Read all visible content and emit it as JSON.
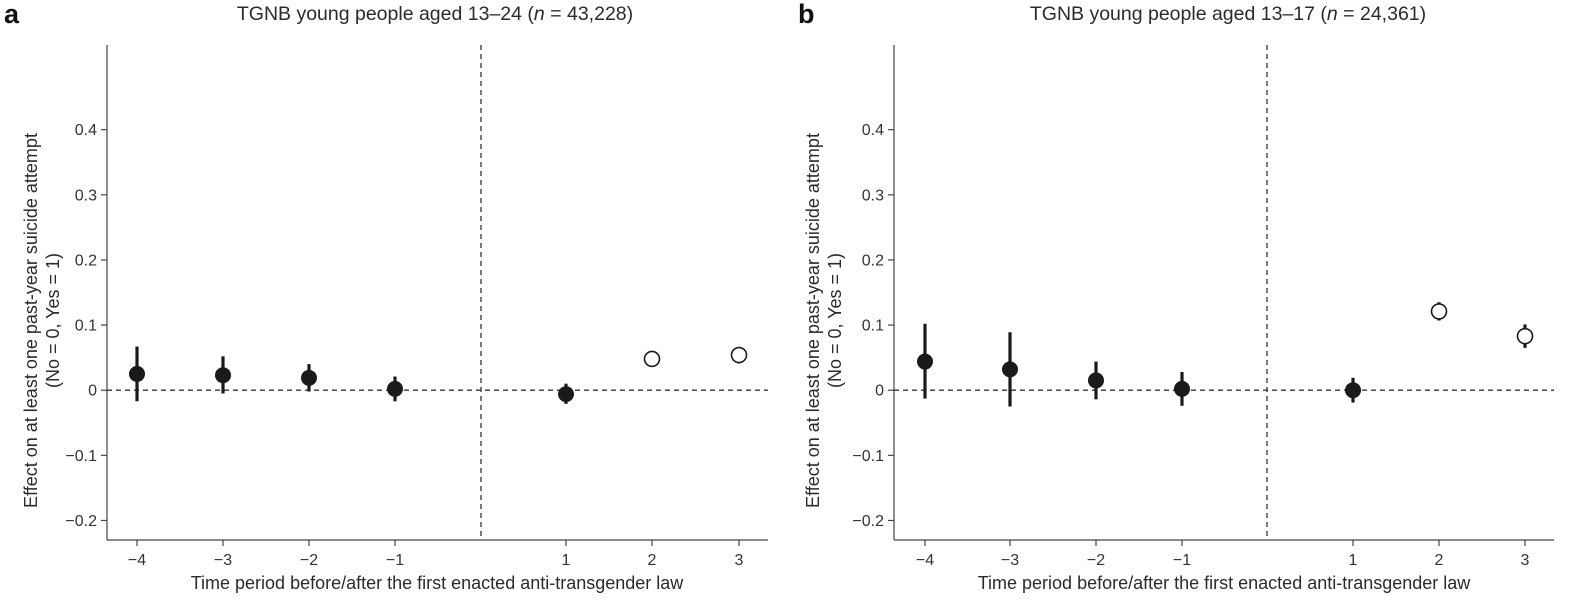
{
  "chart_data": [
    {
      "type": "scatter",
      "panel_letter": "a",
      "title_prefix": "TGNB young people aged 13–24 (",
      "title_n": "n",
      "title_suffix": " = 43,228)",
      "xlabel": "Time period before/after the first enacted anti-transgender law",
      "ylabel_line1": "Effect on at least one past-year suicide attempt",
      "ylabel_line2": "(No = 0, Yes = 1)",
      "ylim": [
        -0.23,
        0.53
      ],
      "yticks": [
        0.4,
        0.3,
        0.2,
        0.1,
        0,
        -0.1,
        -0.2
      ],
      "ytick_labels": [
        "0.4",
        "0.3",
        "0.2",
        "0.1",
        "0",
        "−0.1",
        "−0.2"
      ],
      "xticks": [
        -4,
        -3,
        -2,
        -1,
        1,
        2,
        3
      ],
      "xtick_labels": [
        "−4",
        "−3",
        "−2",
        "−1",
        "1",
        "2",
        "3"
      ],
      "reference_lines": {
        "y": 0,
        "x": "between -1 and 1"
      },
      "grid": false,
      "points": [
        {
          "x": -4,
          "y": 0.025,
          "ci": [
            -0.017,
            0.067
          ],
          "marker": "filled"
        },
        {
          "x": -3,
          "y": 0.023,
          "ci": [
            -0.005,
            0.052
          ],
          "marker": "filled"
        },
        {
          "x": -2,
          "y": 0.019,
          "ci": [
            -0.002,
            0.04
          ],
          "marker": "filled"
        },
        {
          "x": -1,
          "y": 0.002,
          "ci": [
            -0.017,
            0.021
          ],
          "marker": "filled"
        },
        {
          "x": 1,
          "y": -0.006,
          "ci": [
            -0.021,
            0.01
          ],
          "marker": "filled"
        },
        {
          "x": 2,
          "y": 0.048,
          "ci": [
            0.04,
            0.056
          ],
          "marker": "open"
        },
        {
          "x": 3,
          "y": 0.054,
          "ci": [
            0.041,
            0.066
          ],
          "marker": "open"
        }
      ]
    },
    {
      "type": "scatter",
      "panel_letter": "b",
      "title_prefix": "TGNB young people aged 13–17 (",
      "title_n": "n",
      "title_suffix": " = 24,361)",
      "xlabel": "Time period before/after the first enacted anti-transgender law",
      "ylabel_line1": "Effect on at least one past-year suicide attempt",
      "ylabel_line2": "(No = 0, Yes = 1)",
      "ylim": [
        -0.23,
        0.53
      ],
      "yticks": [
        0.4,
        0.3,
        0.2,
        0.1,
        0,
        -0.1,
        -0.2
      ],
      "ytick_labels": [
        "0.4",
        "0.3",
        "0.2",
        "0.1",
        "0",
        "−0.1",
        "−0.2"
      ],
      "xticks": [
        -4,
        -3,
        -2,
        -1,
        1,
        2,
        3
      ],
      "xtick_labels": [
        "−4",
        "−3",
        "−2",
        "−1",
        "1",
        "2",
        "3"
      ],
      "reference_lines": {
        "y": 0,
        "x": "between -1 and 1"
      },
      "grid": false,
      "points": [
        {
          "x": -4,
          "y": 0.044,
          "ci": [
            -0.013,
            0.102
          ],
          "marker": "filled"
        },
        {
          "x": -3,
          "y": 0.032,
          "ci": [
            -0.025,
            0.089
          ],
          "marker": "filled"
        },
        {
          "x": -2,
          "y": 0.015,
          "ci": [
            -0.014,
            0.044
          ],
          "marker": "filled"
        },
        {
          "x": -1,
          "y": 0.002,
          "ci": [
            -0.024,
            0.028
          ],
          "marker": "filled"
        },
        {
          "x": 1,
          "y": 0.0,
          "ci": [
            -0.019,
            0.019
          ],
          "marker": "filled"
        },
        {
          "x": 2,
          "y": 0.121,
          "ci": [
            0.107,
            0.135
          ],
          "marker": "open"
        },
        {
          "x": 3,
          "y": 0.083,
          "ci": [
            0.065,
            0.101
          ],
          "marker": "open"
        }
      ]
    }
  ]
}
